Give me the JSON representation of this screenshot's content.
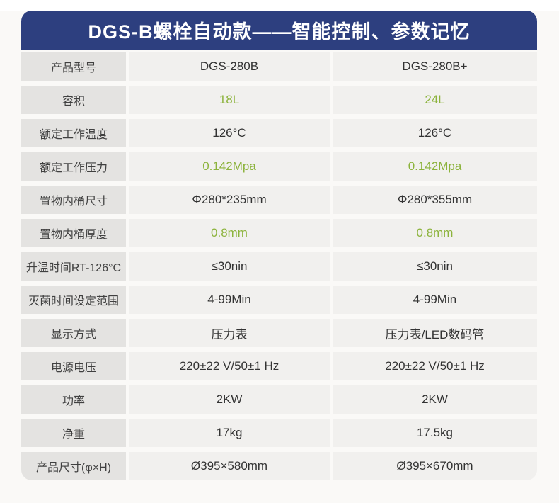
{
  "title": "DGS-B螺栓自动款——智能控制、参数记忆",
  "colors": {
    "header_bg": "#2d3f7f",
    "label_bg": "#e4e3e1",
    "value_bg": "#f1f0ee",
    "green_accent": "#8cb33c",
    "page_bg": "#faf9f7"
  },
  "table": {
    "rows": [
      {
        "label": "产品型号",
        "v1": "DGS-280B",
        "v2": "DGS-280B+",
        "green": false
      },
      {
        "label": "容积",
        "v1": "18L",
        "v2": "24L",
        "green": true
      },
      {
        "label": "额定工作温度",
        "v1": "126°C",
        "v2": "126°C",
        "green": false
      },
      {
        "label": "额定工作压力",
        "v1": "0.142Mpa",
        "v2": "0.142Mpa",
        "green": true
      },
      {
        "label": "置物内桶尺寸",
        "v1": "Φ280*235mm",
        "v2": "Φ280*355mm",
        "green": false
      },
      {
        "label": "置物内桶厚度",
        "v1": "0.8mm",
        "v2": "0.8mm",
        "green": true
      },
      {
        "label": "升温时间RT-126°C",
        "v1": "≤30nin",
        "v2": "≤30nin",
        "green": false
      },
      {
        "label": "灭菌时间设定范围",
        "v1": "4-99Min",
        "v2": "4-99Min",
        "green": false
      },
      {
        "label": "显示方式",
        "v1": "压力表",
        "v2": "压力表/LED数码管",
        "green": false
      },
      {
        "label": "电源电压",
        "v1": "220±22 V/50±1 Hz",
        "v2": "220±22 V/50±1 Hz",
        "green": false
      },
      {
        "label": "功率",
        "v1": "2KW",
        "v2": "2KW",
        "green": false
      },
      {
        "label": "净重",
        "v1": "17kg",
        "v2": "17.5kg",
        "green": false
      },
      {
        "label": "产品尺寸(φ×H)",
        "v1": "Ø395×580mm",
        "v2": "Ø395×670mm",
        "green": false
      }
    ]
  }
}
